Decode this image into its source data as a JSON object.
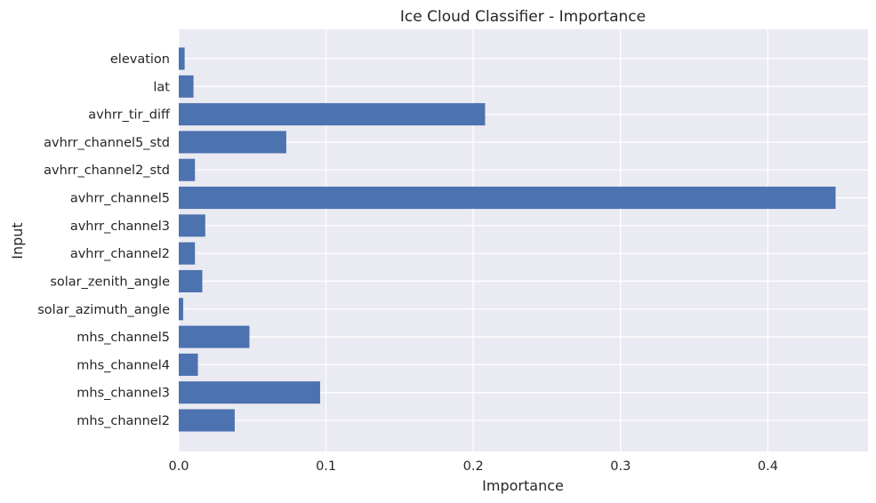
{
  "chart_data": {
    "type": "bar",
    "orientation": "horizontal",
    "title": "Ice Cloud Classifier - Importance",
    "xlabel": "Importance",
    "ylabel": "Input",
    "categories": [
      "mhs_channel2",
      "mhs_channel3",
      "mhs_channel4",
      "mhs_channel5",
      "solar_azimuth_angle",
      "solar_zenith_angle",
      "avhrr_channel2",
      "avhrr_channel3",
      "avhrr_channel5",
      "avhrr_channel2_std",
      "avhrr_channel5_std",
      "avhrr_tir_diff",
      "lat",
      "elevation"
    ],
    "values": [
      0.038,
      0.096,
      0.013,
      0.048,
      0.003,
      0.016,
      0.011,
      0.018,
      0.446,
      0.011,
      0.073,
      0.208,
      0.01,
      0.004
    ],
    "xticks": [
      "0.0",
      "0.1",
      "0.2",
      "0.3",
      "0.4"
    ],
    "xtick_values": [
      0,
      0.1,
      0.2,
      0.3,
      0.4
    ],
    "xlim": [
      0,
      0.468
    ],
    "grid": true,
    "colors": {
      "bar": "#4c72b0",
      "background": "#eaeaf2",
      "grid": "#ffffff",
      "text": "#262626"
    }
  }
}
